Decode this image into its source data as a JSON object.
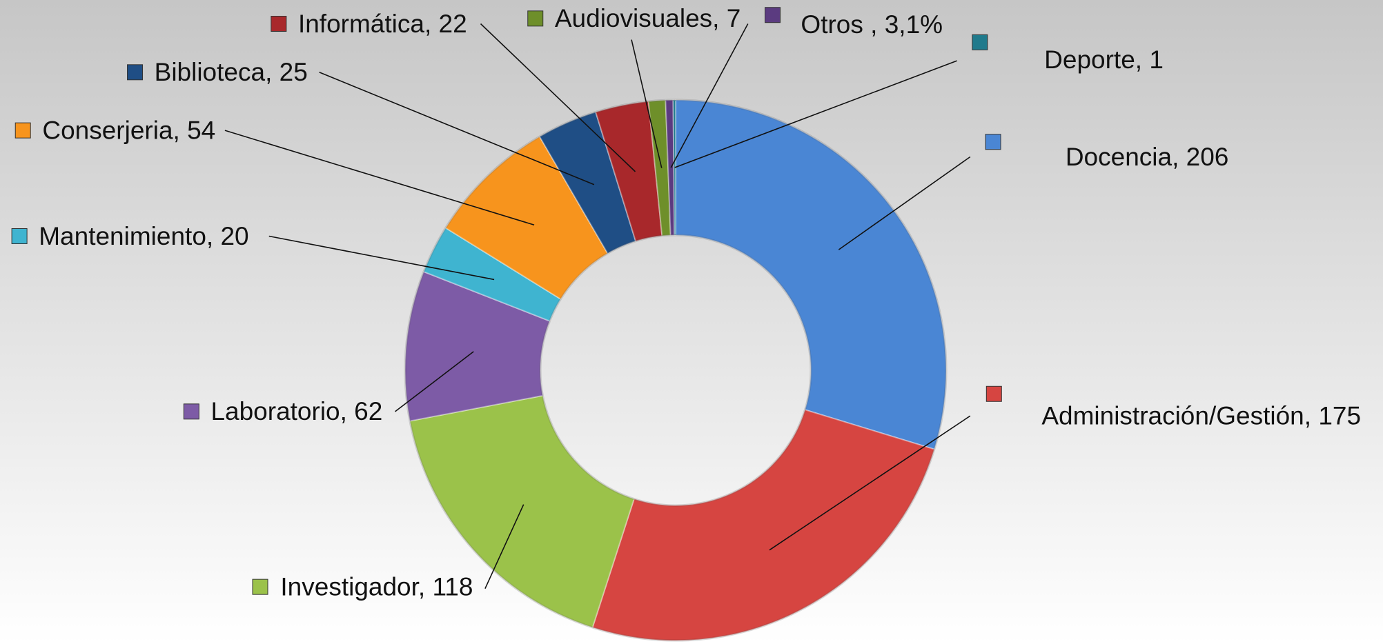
{
  "chart_data": {
    "type": "doughnut",
    "values": [
      206,
      175,
      118,
      62,
      20,
      54,
      25,
      22,
      7,
      3.1,
      1
    ],
    "value_labels": [
      "Docencia, 206",
      "Administración/Gestión, 175",
      "Investigador, 118",
      "Laboratorio, 62",
      "Mantenimiento, 20",
      "Conserjeria, 54",
      "Biblioteca, 25",
      "Informática, 22",
      "Audiovisuales, 7",
      "Otros , 3,1%",
      "Deporte, 1"
    ],
    "colors": [
      "#4a86d4",
      "#d64541",
      "#9bc24a",
      "#7d5ba6",
      "#3fb4d0",
      "#f7941d",
      "#1f4e85",
      "#a8282b",
      "#6e8f2a",
      "#5b3b80",
      "#1f7a8c"
    ]
  }
}
